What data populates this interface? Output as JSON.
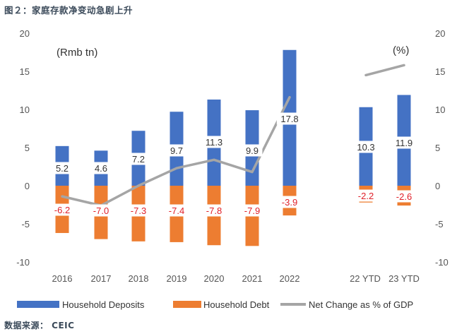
{
  "figure_title": "图２：家庭存款净变动急剧上升",
  "source": "数据来源： CEIC",
  "chart_data": {
    "type": "bar",
    "categories": [
      "2016",
      "2017",
      "2018",
      "2019",
      "2020",
      "2021",
      "2022",
      "22 YTD",
      "23 YTD"
    ],
    "y_left_unit": "(Rmb tn)",
    "y_right_unit": "(%)",
    "ylim": [
      -10,
      20
    ],
    "yticks": [
      "-10",
      "-5",
      "0",
      "5",
      "10",
      "15",
      "20"
    ],
    "series": [
      {
        "name": "Household Deposits",
        "type": "bar",
        "axis": "left",
        "color": "#4472C4",
        "values": [
          5.2,
          4.6,
          7.2,
          9.7,
          11.3,
          9.9,
          17.8,
          10.3,
          11.9
        ],
        "labels": [
          "5.2",
          "4.6",
          "7.2",
          "9.7",
          "11.3",
          "9.9",
          "17.8",
          "10.3",
          "11.9"
        ],
        "label_color": "#333333"
      },
      {
        "name": "Household Debt",
        "type": "bar",
        "axis": "left",
        "color": "#ED7D31",
        "values": [
          -6.2,
          -7.0,
          -7.3,
          -7.4,
          -7.8,
          -7.9,
          -3.9,
          -2.2,
          -2.6
        ],
        "labels": [
          "-6.2",
          "-7.0",
          "-7.3",
          "-7.4",
          "-7.8",
          "-7.9",
          "-3.9",
          "-2.2",
          "-2.6"
        ],
        "label_color": "#e0202a"
      },
      {
        "name": "Net Change as % of GDP",
        "type": "line",
        "axis": "right",
        "color": "#A5A5A5",
        "segments": [
          {
            "x": [
              "2016",
              "2017",
              "2018",
              "2019",
              "2020",
              "2021",
              "2022"
            ],
            "y": [
              -1.4,
              -2.6,
              0,
              2.3,
              3.4,
              1.8,
              11.6
            ]
          },
          {
            "x": [
              "22 YTD",
              "23 YTD"
            ],
            "y": [
              14.5,
              15.8
            ]
          }
        ]
      }
    ],
    "legend": [
      "Household Deposits",
      "Household Debt",
      "Net Change as % of GDP"
    ],
    "legend_position": "bottom",
    "grid": false
  }
}
